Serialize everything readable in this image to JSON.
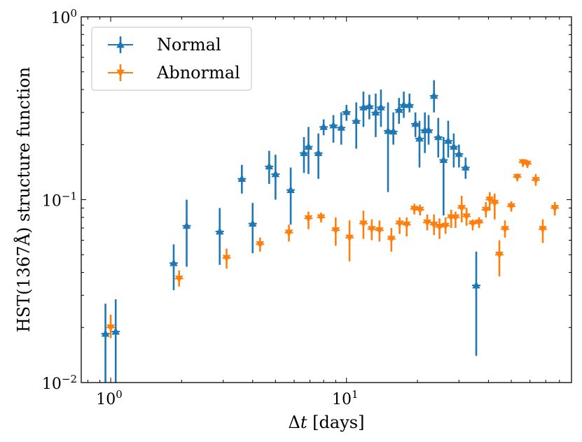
{
  "chart_data": {
    "type": "scatter",
    "title": "",
    "xlabel": "Δt [days]",
    "ylabel": "HST(1367Å) structure function",
    "xscale": "log",
    "yscale": "log",
    "xlim": [
      0.75,
      90
    ],
    "ylim": [
      0.01,
      1.0
    ],
    "legend_position": "top-left",
    "x_ticks": [
      {
        "value": 1,
        "label_base": "10",
        "label_exp": "0"
      },
      {
        "value": 10,
        "label_base": "10",
        "label_exp": "1"
      }
    ],
    "y_ticks": [
      {
        "value": 0.01,
        "label_base": "10",
        "label_exp": "−2"
      },
      {
        "value": 0.1,
        "label_base": "10",
        "label_exp": "−1"
      },
      {
        "value": 1.0,
        "label_base": "10",
        "label_exp": "0"
      }
    ],
    "series": [
      {
        "name": "Normal",
        "color": "#1f77b4",
        "marker": "triangle-up",
        "points": [
          {
            "x": 0.95,
            "y": 0.0185,
            "lo": 0.009,
            "hi": 0.027
          },
          {
            "x": 1.05,
            "y": 0.019,
            "lo": 0.009,
            "hi": 0.0285
          },
          {
            "x": 1.85,
            "y": 0.045,
            "lo": 0.032,
            "hi": 0.057
          },
          {
            "x": 2.1,
            "y": 0.072,
            "lo": 0.043,
            "hi": 0.1
          },
          {
            "x": 2.9,
            "y": 0.067,
            "lo": 0.044,
            "hi": 0.09
          },
          {
            "x": 3.6,
            "y": 0.13,
            "lo": 0.108,
            "hi": 0.155
          },
          {
            "x": 4.0,
            "y": 0.074,
            "lo": 0.051,
            "hi": 0.096
          },
          {
            "x": 4.7,
            "y": 0.152,
            "lo": 0.122,
            "hi": 0.185
          },
          {
            "x": 5.0,
            "y": 0.138,
            "lo": 0.1,
            "hi": 0.176
          },
          {
            "x": 5.8,
            "y": 0.113,
            "lo": 0.073,
            "hi": 0.15
          },
          {
            "x": 6.6,
            "y": 0.18,
            "lo": 0.14,
            "hi": 0.22
          },
          {
            "x": 6.9,
            "y": 0.195,
            "lo": 0.138,
            "hi": 0.25
          },
          {
            "x": 7.6,
            "y": 0.18,
            "lo": 0.13,
            "hi": 0.23
          },
          {
            "x": 8.0,
            "y": 0.25,
            "lo": 0.225,
            "hi": 0.275
          },
          {
            "x": 8.8,
            "y": 0.255,
            "lo": 0.205,
            "hi": 0.29
          },
          {
            "x": 9.5,
            "y": 0.248,
            "lo": 0.2,
            "hi": 0.3
          },
          {
            "x": 10.0,
            "y": 0.302,
            "lo": 0.27,
            "hi": 0.33
          },
          {
            "x": 11.0,
            "y": 0.27,
            "lo": 0.19,
            "hi": 0.34
          },
          {
            "x": 11.8,
            "y": 0.32,
            "lo": 0.25,
            "hi": 0.39
          },
          {
            "x": 12.5,
            "y": 0.325,
            "lo": 0.275,
            "hi": 0.375
          },
          {
            "x": 13.3,
            "y": 0.3,
            "lo": 0.22,
            "hi": 0.38
          },
          {
            "x": 14.0,
            "y": 0.32,
            "lo": 0.25,
            "hi": 0.4
          },
          {
            "x": 15.0,
            "y": 0.238,
            "lo": 0.11,
            "hi": 0.34
          },
          {
            "x": 15.8,
            "y": 0.236,
            "lo": 0.2,
            "hi": 0.3
          },
          {
            "x": 16.7,
            "y": 0.31,
            "lo": 0.26,
            "hi": 0.36
          },
          {
            "x": 17.5,
            "y": 0.33,
            "lo": 0.28,
            "hi": 0.39
          },
          {
            "x": 18.5,
            "y": 0.33,
            "lo": 0.3,
            "hi": 0.38
          },
          {
            "x": 19.6,
            "y": 0.26,
            "lo": 0.22,
            "hi": 0.3
          },
          {
            "x": 20.4,
            "y": 0.216,
            "lo": 0.15,
            "hi": 0.27
          },
          {
            "x": 21.5,
            "y": 0.24,
            "lo": 0.18,
            "hi": 0.3
          },
          {
            "x": 22.3,
            "y": 0.24,
            "lo": 0.2,
            "hi": 0.29
          },
          {
            "x": 23.5,
            "y": 0.37,
            "lo": 0.3,
            "hi": 0.45
          },
          {
            "x": 24.5,
            "y": 0.22,
            "lo": 0.17,
            "hi": 0.28
          },
          {
            "x": 25.8,
            "y": 0.165,
            "lo": 0.082,
            "hi": 0.22
          },
          {
            "x": 27.0,
            "y": 0.21,
            "lo": 0.17,
            "hi": 0.27
          },
          {
            "x": 28.5,
            "y": 0.195,
            "lo": 0.15,
            "hi": 0.23
          },
          {
            "x": 30.0,
            "y": 0.178,
            "lo": 0.15,
            "hi": 0.2
          },
          {
            "x": 32.0,
            "y": 0.15,
            "lo": 0.13,
            "hi": 0.17
          },
          {
            "x": 35.5,
            "y": 0.034,
            "lo": 0.014,
            "hi": 0.052
          }
        ]
      },
      {
        "name": "Abnormal",
        "color": "#ff7f0e",
        "marker": "triangle-down",
        "points": [
          {
            "x": 1.0,
            "y": 0.02,
            "lo": 0.0175,
            "hi": 0.0235
          },
          {
            "x": 1.95,
            "y": 0.037,
            "lo": 0.0335,
            "hi": 0.041
          },
          {
            "x": 3.1,
            "y": 0.048,
            "lo": 0.042,
            "hi": 0.054
          },
          {
            "x": 4.3,
            "y": 0.057,
            "lo": 0.052,
            "hi": 0.062
          },
          {
            "x": 5.7,
            "y": 0.066,
            "lo": 0.059,
            "hi": 0.073
          },
          {
            "x": 6.9,
            "y": 0.079,
            "lo": 0.069,
            "hi": 0.086
          },
          {
            "x": 7.8,
            "y": 0.08,
            "lo": 0.075,
            "hi": 0.085
          },
          {
            "x": 9.0,
            "y": 0.068,
            "lo": 0.056,
            "hi": 0.08
          },
          {
            "x": 10.3,
            "y": 0.062,
            "lo": 0.046,
            "hi": 0.077
          },
          {
            "x": 11.8,
            "y": 0.074,
            "lo": 0.061,
            "hi": 0.087
          },
          {
            "x": 12.8,
            "y": 0.069,
            "lo": 0.06,
            "hi": 0.078
          },
          {
            "x": 13.8,
            "y": 0.068,
            "lo": 0.059,
            "hi": 0.077
          },
          {
            "x": 15.5,
            "y": 0.061,
            "lo": 0.052,
            "hi": 0.07
          },
          {
            "x": 16.8,
            "y": 0.074,
            "lo": 0.065,
            "hi": 0.08
          },
          {
            "x": 18.0,
            "y": 0.073,
            "lo": 0.063,
            "hi": 0.08
          },
          {
            "x": 19.4,
            "y": 0.089,
            "lo": 0.083,
            "hi": 0.095
          },
          {
            "x": 20.5,
            "y": 0.088,
            "lo": 0.082,
            "hi": 0.094
          },
          {
            "x": 22.0,
            "y": 0.075,
            "lo": 0.068,
            "hi": 0.083
          },
          {
            "x": 23.5,
            "y": 0.073,
            "lo": 0.064,
            "hi": 0.083
          },
          {
            "x": 24.8,
            "y": 0.071,
            "lo": 0.061,
            "hi": 0.079
          },
          {
            "x": 26.3,
            "y": 0.072,
            "lo": 0.065,
            "hi": 0.08
          },
          {
            "x": 27.8,
            "y": 0.08,
            "lo": 0.07,
            "hi": 0.088
          },
          {
            "x": 29.0,
            "y": 0.08,
            "lo": 0.07,
            "hi": 0.086
          },
          {
            "x": 30.8,
            "y": 0.09,
            "lo": 0.075,
            "hi": 0.105
          },
          {
            "x": 32.3,
            "y": 0.081,
            "lo": 0.072,
            "hi": 0.09
          },
          {
            "x": 34.3,
            "y": 0.074,
            "lo": 0.068,
            "hi": 0.078
          },
          {
            "x": 36.5,
            "y": 0.075,
            "lo": 0.07,
            "hi": 0.08
          },
          {
            "x": 39.0,
            "y": 0.088,
            "lo": 0.08,
            "hi": 0.097
          },
          {
            "x": 40.5,
            "y": 0.1,
            "lo": 0.087,
            "hi": 0.11
          },
          {
            "x": 42.5,
            "y": 0.096,
            "lo": 0.078,
            "hi": 0.108
          },
          {
            "x": 44.5,
            "y": 0.05,
            "lo": 0.038,
            "hi": 0.06
          },
          {
            "x": 47.0,
            "y": 0.069,
            "lo": 0.062,
            "hi": 0.077
          },
          {
            "x": 50.0,
            "y": 0.092,
            "lo": 0.086,
            "hi": 0.098
          },
          {
            "x": 53.0,
            "y": 0.133,
            "lo": 0.126,
            "hi": 0.139
          },
          {
            "x": 56.0,
            "y": 0.16,
            "lo": 0.151,
            "hi": 0.167
          },
          {
            "x": 58.5,
            "y": 0.157,
            "lo": 0.149,
            "hi": 0.165
          },
          {
            "x": 63.5,
            "y": 0.128,
            "lo": 0.119,
            "hi": 0.138
          },
          {
            "x": 68.0,
            "y": 0.069,
            "lo": 0.058,
            "hi": 0.078
          },
          {
            "x": 76.5,
            "y": 0.09,
            "lo": 0.082,
            "hi": 0.097
          }
        ]
      }
    ]
  }
}
